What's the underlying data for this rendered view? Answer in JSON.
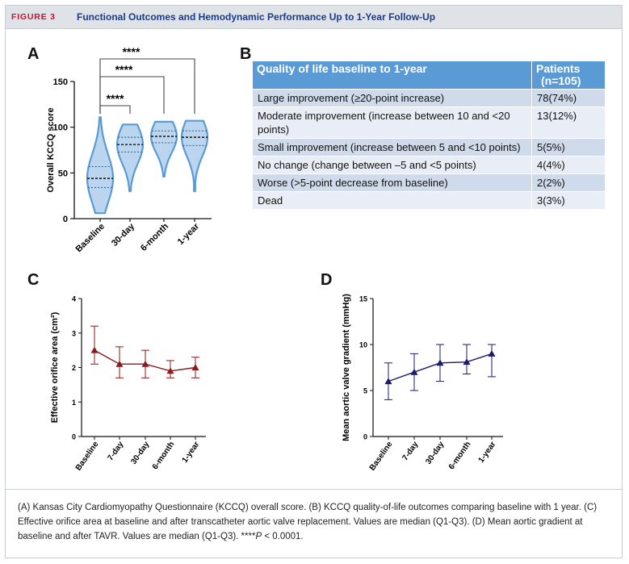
{
  "header": {
    "figure_label": "FIGURE 3",
    "title": "Functional Outcomes and Hemodynamic Performance Up to 1-Year Follow-Up"
  },
  "panels": {
    "a": "A",
    "b": "B",
    "c": "C",
    "d": "D"
  },
  "table": {
    "col1_header": "Quality of life baseline to 1-year",
    "col2_header_line1": "Patients",
    "col2_header_line2": "(n=105)",
    "rows": [
      {
        "label": "Large improvement (≥20-point increase)",
        "value": "78(74%)"
      },
      {
        "label": "Moderate improvement (increase between 10 and <20 points)",
        "value": "13(12%)"
      },
      {
        "label": "Small improvement (increase between 5 and <10 points)",
        "value": "5(5%)"
      },
      {
        "label": "No change (change between –5 and <5 points)",
        "value": "4(4%)"
      },
      {
        "label": "Worse (>5-point decrease from baseline)",
        "value": "2(2%)"
      },
      {
        "label": "Dead",
        "value": "3(3%)"
      }
    ]
  },
  "caption": {
    "text_before": "(A) Kansas City Cardiomyopathy Questionnaire (KCCQ) overall score. (B) KCCQ quality-of-life outcomes comparing baseline with 1 year. (C) Effective orifice area at baseline and after transcatheter aortic valve replacement. Values are median (Q1-Q3). (D) Mean aortic gradient at baseline and after TAVR. Values are median (Q1-Q3). ****",
    "text_p": "P",
    "text_after": " < 0.0001."
  },
  "chart_data": [
    {
      "panel": "A",
      "type": "violin",
      "ylabel": "Overall KCCQ score",
      "ylim": [
        0,
        150
      ],
      "yticks": [
        0,
        50,
        100,
        150
      ],
      "categories": [
        "Baseline",
        "30-day",
        "6-month",
        "1-year"
      ],
      "median": [
        44,
        81,
        90,
        89
      ],
      "q1": [
        34,
        73,
        83,
        80
      ],
      "q3": [
        57,
        89,
        96,
        96
      ],
      "min": [
        6,
        30,
        46,
        30
      ],
      "max": [
        111,
        103,
        106,
        107
      ],
      "color": "#5b9bd5",
      "significance": [
        {
          "from": "Baseline",
          "to": "30-day",
          "label": "****"
        },
        {
          "from": "Baseline",
          "to": "6-month",
          "label": "****"
        },
        {
          "from": "Baseline",
          "to": "1-year",
          "label": "****"
        }
      ]
    },
    {
      "panel": "C",
      "type": "line",
      "ylabel": "Effective orifice area (cm²)",
      "ylim": [
        0,
        4
      ],
      "yticks": [
        0,
        1,
        2,
        3,
        4
      ],
      "categories": [
        "Baseline",
        "7-day",
        "30-day",
        "6-month",
        "1-year"
      ],
      "values": [
        2.5,
        2.1,
        2.1,
        1.9,
        2.0
      ],
      "q1": [
        2.1,
        1.7,
        1.7,
        1.7,
        1.7
      ],
      "q3": [
        3.2,
        2.6,
        2.5,
        2.2,
        2.3
      ],
      "color": "#8b1a1a"
    },
    {
      "panel": "D",
      "type": "line",
      "ylabel": "Mean aortic valve gradient (mmHg)",
      "ylim": [
        0,
        15
      ],
      "yticks": [
        0,
        5,
        10,
        15
      ],
      "categories": [
        "Baseline",
        "7-day",
        "30-day",
        "6-month",
        "1-year"
      ],
      "values": [
        6,
        7,
        8,
        8.1,
        9
      ],
      "q1": [
        4,
        5,
        6,
        6.8,
        6.5
      ],
      "q3": [
        8,
        9,
        10,
        10,
        10
      ],
      "color": "#1a1a6e"
    }
  ]
}
